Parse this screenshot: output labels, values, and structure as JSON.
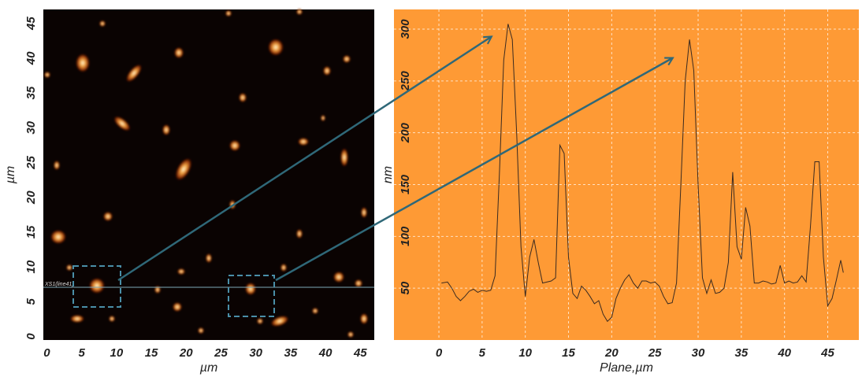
{
  "chart_data": [
    {
      "type": "image",
      "xlabel": "µm",
      "ylabel": "µm",
      "line_label": "XS1(line41)",
      "xlim": [
        -0.5,
        47
      ],
      "ylim": [
        -0.5,
        47
      ],
      "xticks": [
        0,
        5,
        10,
        15,
        20,
        25,
        30,
        35,
        40,
        45
      ],
      "yticks": [
        0,
        5,
        10,
        15,
        20,
        25,
        30,
        35,
        40,
        45
      ]
    },
    {
      "type": "line",
      "xlabel": "Plane,µm",
      "ylabel": "nm",
      "color": "#3a2a20",
      "background": "#fe9a35",
      "grid": true,
      "xlim": [
        -5.2,
        48.6
      ],
      "ylim": [
        0,
        319
      ],
      "xticks": [
        0,
        5,
        10,
        15,
        20,
        25,
        30,
        35,
        40,
        45
      ],
      "yticks": [
        50,
        100,
        150,
        200,
        250,
        300
      ],
      "x": [
        0.3,
        1,
        1.5,
        2,
        2.5,
        3,
        3.5,
        4,
        4.5,
        5,
        5.5,
        6,
        6.5,
        7,
        7.5,
        8,
        8.5,
        9,
        9.5,
        10,
        10.5,
        11,
        11.5,
        12,
        13,
        13.5,
        14,
        14.5,
        15,
        15.5,
        16,
        16.5,
        17,
        17.5,
        18,
        18.5,
        19,
        19.5,
        20,
        20.5,
        21,
        21.5,
        22,
        22.5,
        23,
        23.5,
        24,
        24.5,
        25,
        25.5,
        26,
        26.5,
        27,
        27.5,
        28,
        28.5,
        29,
        29.5,
        30,
        30.5,
        31,
        31.5,
        32,
        32.5,
        33,
        33.5,
        34,
        34.5,
        35,
        35.5,
        36,
        36.5,
        37,
        37.5,
        38,
        38.5,
        39,
        39.5,
        40,
        40.5,
        41,
        41.5,
        42,
        42.5,
        43,
        43.5,
        44,
        44.5,
        45,
        45.5,
        46,
        46.5,
        46.8
      ],
      "values": [
        55,
        56,
        50,
        42,
        38,
        42,
        47,
        49,
        46,
        48,
        47,
        48,
        62,
        160,
        270,
        305,
        290,
        200,
        90,
        42,
        80,
        97,
        75,
        55,
        57,
        60,
        188,
        180,
        80,
        45,
        40,
        52,
        48,
        42,
        35,
        38,
        25,
        18,
        22,
        40,
        50,
        58,
        63,
        55,
        50,
        57,
        57,
        55,
        56,
        52,
        42,
        35,
        36,
        55,
        150,
        250,
        290,
        260,
        150,
        60,
        45,
        58,
        45,
        46,
        50,
        75,
        162,
        90,
        78,
        128,
        110,
        55,
        55,
        57,
        56,
        54,
        55,
        72,
        55,
        57,
        55,
        56,
        62,
        56,
        110,
        172,
        172,
        80,
        33,
        40,
        58,
        77,
        65
      ]
    }
  ]
}
